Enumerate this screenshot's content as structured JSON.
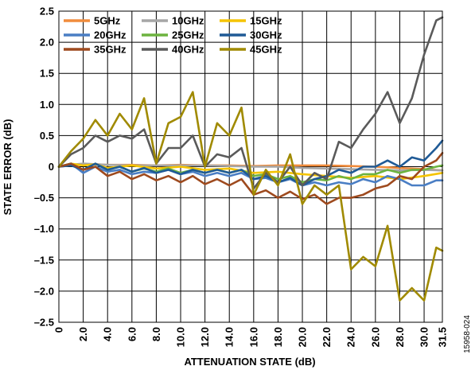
{
  "figure_id": "15958-024",
  "chart_data": {
    "type": "line",
    "title": "",
    "xlabel": "ATTENUATION STATE (dB)",
    "ylabel": "STATE ERROR (dB)",
    "xlim": [
      0,
      31.5
    ],
    "ylim": [
      -2.5,
      2.5
    ],
    "x_ticks": [
      0,
      2,
      4,
      6,
      8,
      10,
      12,
      14,
      16,
      18,
      20,
      22,
      24,
      26,
      28,
      30,
      31.5
    ],
    "x_tick_labels": [
      "0",
      "2.0",
      "4.0",
      "6.0",
      "8.0",
      "10.0",
      "12.0",
      "14.0",
      "16.0",
      "18.0",
      "20.0",
      "22.0",
      "24.0",
      "26.0",
      "28.0",
      "30.0",
      "31.5"
    ],
    "y_ticks": [
      2.5,
      2.0,
      1.5,
      1.0,
      0.5,
      0,
      -0.5,
      -1.0,
      -1.5,
      -2.0,
      -2.5
    ],
    "y_tick_labels": [
      "2.5",
      "2.0",
      "1.5",
      "1.0",
      "0.5",
      "0",
      "–0.5",
      "–1.0",
      "–1.5",
      "–2.0",
      "–2.5"
    ],
    "grid": true,
    "legend_position": "top-left",
    "legend_columns": 3,
    "series": [
      {
        "name": "5GHz",
        "color": "#F08C3C",
        "points": [
          [
            0,
            0
          ],
          [
            1,
            0.02
          ],
          [
            2,
            0.03
          ],
          [
            3,
            0.04
          ],
          [
            4,
            0.03
          ],
          [
            6,
            0.03
          ],
          [
            8,
            0.02
          ],
          [
            10,
            0.03
          ],
          [
            12,
            0.02
          ],
          [
            14,
            0.02
          ],
          [
            16,
            0.01
          ],
          [
            18,
            0.02
          ],
          [
            20,
            0.02
          ],
          [
            22,
            0.02
          ],
          [
            24,
            0.01
          ],
          [
            26,
            0
          ],
          [
            28,
            -0.02
          ],
          [
            30,
            -0.04
          ],
          [
            31.5,
            -0.06
          ]
        ]
      },
      {
        "name": "10GHz",
        "color": "#A6A6A6",
        "points": [
          [
            0,
            0
          ],
          [
            1,
            0.03
          ],
          [
            2,
            0.05
          ],
          [
            3,
            0.04
          ],
          [
            4,
            0.03
          ],
          [
            6,
            0.02
          ],
          [
            8,
            0.02
          ],
          [
            10,
            0.02
          ],
          [
            12,
            0.02
          ],
          [
            14,
            0.01
          ],
          [
            16,
            0
          ],
          [
            18,
            0
          ],
          [
            20,
            -0.02
          ],
          [
            22,
            -0.03
          ],
          [
            24,
            -0.04
          ],
          [
            26,
            -0.05
          ],
          [
            28,
            -0.06
          ],
          [
            30,
            -0.05
          ],
          [
            31.5,
            -0.06
          ]
        ]
      },
      {
        "name": "15GHz",
        "color": "#F5C400",
        "points": [
          [
            0,
            0
          ],
          [
            1,
            0.05
          ],
          [
            2,
            0.02
          ],
          [
            3,
            0.04
          ],
          [
            4,
            -0.02
          ],
          [
            6,
            0.02
          ],
          [
            8,
            -0.03
          ],
          [
            10,
            0
          ],
          [
            12,
            -0.05
          ],
          [
            14,
            -0.03
          ],
          [
            16,
            -0.1
          ],
          [
            18,
            -0.08
          ],
          [
            20,
            -0.12
          ],
          [
            22,
            -0.15
          ],
          [
            24,
            -0.18
          ],
          [
            26,
            -0.15
          ],
          [
            28,
            -0.2
          ],
          [
            30,
            -0.15
          ],
          [
            31.5,
            -0.1
          ]
        ]
      },
      {
        "name": "20GHz",
        "color": "#4A7EC4",
        "points": [
          [
            0,
            0
          ],
          [
            1,
            0.05
          ],
          [
            2,
            -0.1
          ],
          [
            3,
            0
          ],
          [
            4,
            -0.08
          ],
          [
            5,
            -0.05
          ],
          [
            6,
            -0.12
          ],
          [
            7,
            -0.08
          ],
          [
            8,
            -0.1
          ],
          [
            9,
            -0.05
          ],
          [
            10,
            -0.12
          ],
          [
            11,
            -0.08
          ],
          [
            12,
            -0.15
          ],
          [
            13,
            -0.1
          ],
          [
            14,
            -0.15
          ],
          [
            15,
            -0.1
          ],
          [
            16,
            -0.2
          ],
          [
            17,
            -0.18
          ],
          [
            18,
            -0.25
          ],
          [
            19,
            -0.2
          ],
          [
            20,
            -0.3
          ],
          [
            21,
            -0.25
          ],
          [
            22,
            -0.3
          ],
          [
            23,
            -0.25
          ],
          [
            24,
            -0.28
          ],
          [
            25,
            -0.2
          ],
          [
            26,
            -0.25
          ],
          [
            27,
            -0.15
          ],
          [
            28,
            -0.2
          ],
          [
            29,
            -0.3
          ],
          [
            30,
            -0.3
          ],
          [
            31,
            -0.22
          ],
          [
            31.5,
            -0.22
          ]
        ]
      },
      {
        "name": "25GHz",
        "color": "#6DB33F",
        "points": [
          [
            0,
            0
          ],
          [
            1,
            0.05
          ],
          [
            2,
            -0.05
          ],
          [
            3,
            0.05
          ],
          [
            4,
            -0.05
          ],
          [
            5,
            0
          ],
          [
            6,
            -0.08
          ],
          [
            7,
            -0.03
          ],
          [
            8,
            -0.08
          ],
          [
            9,
            -0.03
          ],
          [
            10,
            -0.1
          ],
          [
            11,
            -0.05
          ],
          [
            12,
            -0.1
          ],
          [
            13,
            -0.05
          ],
          [
            14,
            -0.1
          ],
          [
            15,
            -0.05
          ],
          [
            16,
            -0.15
          ],
          [
            17,
            -0.12
          ],
          [
            18,
            -0.2
          ],
          [
            19,
            -0.15
          ],
          [
            20,
            -0.25
          ],
          [
            21,
            -0.2
          ],
          [
            22,
            -0.22
          ],
          [
            23,
            -0.15
          ],
          [
            24,
            -0.2
          ],
          [
            25,
            -0.12
          ],
          [
            26,
            -0.12
          ],
          [
            27,
            -0.05
          ],
          [
            28,
            -0.1
          ],
          [
            29,
            -0.05
          ],
          [
            30,
            -0.05
          ],
          [
            31,
            0
          ],
          [
            31.5,
            0.02
          ]
        ]
      },
      {
        "name": "30GHz",
        "color": "#1F5A96",
        "points": [
          [
            0,
            0
          ],
          [
            1,
            0.02
          ],
          [
            2,
            -0.05
          ],
          [
            3,
            0.05
          ],
          [
            4,
            -0.05
          ],
          [
            5,
            0
          ],
          [
            6,
            -0.08
          ],
          [
            7,
            -0.02
          ],
          [
            8,
            -0.1
          ],
          [
            9,
            -0.05
          ],
          [
            10,
            -0.12
          ],
          [
            11,
            -0.05
          ],
          [
            12,
            -0.1
          ],
          [
            13,
            -0.05
          ],
          [
            14,
            -0.1
          ],
          [
            15,
            -0.05
          ],
          [
            16,
            -0.2
          ],
          [
            17,
            -0.15
          ],
          [
            18,
            -0.25
          ],
          [
            19,
            -0.18
          ],
          [
            20,
            -0.3
          ],
          [
            21,
            -0.2
          ],
          [
            22,
            -0.15
          ],
          [
            23,
            -0.05
          ],
          [
            24,
            -0.1
          ],
          [
            25,
            0
          ],
          [
            26,
            0
          ],
          [
            27,
            0.1
          ],
          [
            28,
            0
          ],
          [
            29,
            0.15
          ],
          [
            30,
            0.1
          ],
          [
            31,
            0.3
          ],
          [
            31.5,
            0.42
          ]
        ]
      },
      {
        "name": "35GHz",
        "color": "#9E4A1E",
        "points": [
          [
            0,
            0
          ],
          [
            1,
            0.05
          ],
          [
            2,
            -0.05
          ],
          [
            3,
            0
          ],
          [
            4,
            -0.15
          ],
          [
            5,
            -0.08
          ],
          [
            6,
            -0.2
          ],
          [
            7,
            -0.12
          ],
          [
            8,
            -0.22
          ],
          [
            9,
            -0.15
          ],
          [
            10,
            -0.25
          ],
          [
            11,
            -0.15
          ],
          [
            12,
            -0.28
          ],
          [
            13,
            -0.2
          ],
          [
            14,
            -0.3
          ],
          [
            15,
            -0.2
          ],
          [
            16,
            -0.45
          ],
          [
            17,
            -0.38
          ],
          [
            18,
            -0.5
          ],
          [
            19,
            -0.4
          ],
          [
            20,
            -0.52
          ],
          [
            21,
            -0.45
          ],
          [
            22,
            -0.6
          ],
          [
            23,
            -0.5
          ],
          [
            24,
            -0.5
          ],
          [
            25,
            -0.45
          ],
          [
            26,
            -0.35
          ],
          [
            27,
            -0.3
          ],
          [
            28,
            -0.15
          ],
          [
            29,
            -0.2
          ],
          [
            30,
            0
          ],
          [
            31,
            0.1
          ],
          [
            31.5,
            0.22
          ]
        ]
      },
      {
        "name": "40GHz",
        "color": "#5A5A5A",
        "points": [
          [
            0,
            0
          ],
          [
            1,
            0.2
          ],
          [
            2,
            0.3
          ],
          [
            3,
            0.5
          ],
          [
            4,
            0.4
          ],
          [
            5,
            0.5
          ],
          [
            6,
            0.45
          ],
          [
            7,
            0.6
          ],
          [
            8,
            0.05
          ],
          [
            9,
            0.3
          ],
          [
            10,
            0.3
          ],
          [
            11,
            0.5
          ],
          [
            12,
            0
          ],
          [
            13,
            0.2
          ],
          [
            14,
            0.15
          ],
          [
            15,
            0.3
          ],
          [
            16,
            -0.35
          ],
          [
            17,
            -0.1
          ],
          [
            18,
            -0.25
          ],
          [
            19,
            0
          ],
          [
            20,
            -0.3
          ],
          [
            21,
            -0.1
          ],
          [
            22,
            -0.2
          ],
          [
            23,
            0.4
          ],
          [
            24,
            0.3
          ],
          [
            25,
            0.6
          ],
          [
            26,
            0.85
          ],
          [
            27,
            1.2
          ],
          [
            28,
            0.7
          ],
          [
            29,
            1.1
          ],
          [
            30,
            1.8
          ],
          [
            31,
            2.35
          ],
          [
            31.5,
            2.4
          ]
        ]
      },
      {
        "name": "45GHz",
        "color": "#A08A00",
        "points": [
          [
            0,
            0
          ],
          [
            1,
            0.25
          ],
          [
            2,
            0.45
          ],
          [
            3,
            0.75
          ],
          [
            4,
            0.5
          ],
          [
            5,
            0.85
          ],
          [
            6,
            0.6
          ],
          [
            7,
            1.1
          ],
          [
            8,
            0.05
          ],
          [
            9,
            0.7
          ],
          [
            10,
            0.8
          ],
          [
            11,
            1.2
          ],
          [
            12,
            0
          ],
          [
            13,
            0.7
          ],
          [
            14,
            0.5
          ],
          [
            15,
            0.95
          ],
          [
            16,
            -0.45
          ],
          [
            17,
            -0.05
          ],
          [
            18,
            -0.3
          ],
          [
            19,
            0.2
          ],
          [
            20,
            -0.6
          ],
          [
            21,
            -0.3
          ],
          [
            22,
            -0.45
          ],
          [
            23,
            -0.3
          ],
          [
            24,
            -1.65
          ],
          [
            25,
            -1.45
          ],
          [
            26,
            -1.6
          ],
          [
            27,
            -0.95
          ],
          [
            28,
            -2.15
          ],
          [
            29,
            -1.95
          ],
          [
            30,
            -2.15
          ],
          [
            31,
            -1.3
          ],
          [
            31.5,
            -1.35
          ]
        ]
      }
    ]
  }
}
